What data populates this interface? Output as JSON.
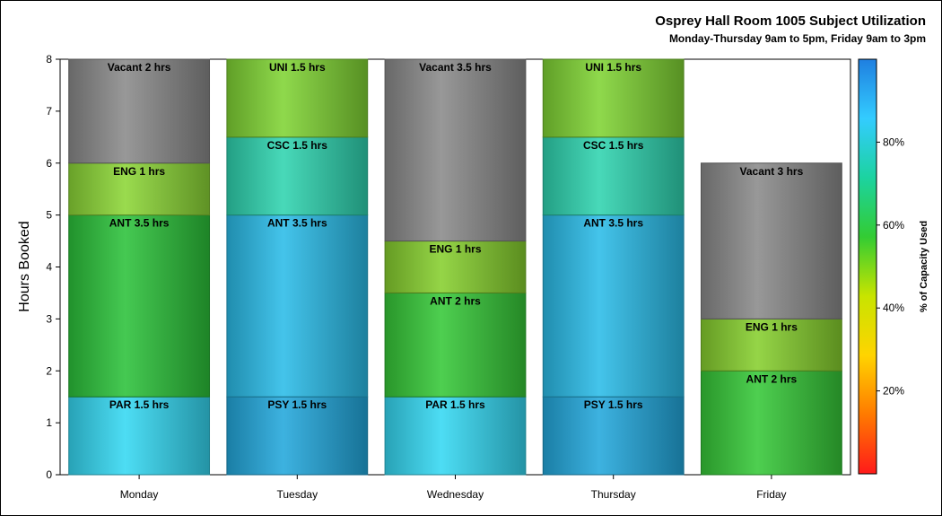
{
  "chart_data": {
    "type": "bar",
    "stacked": true,
    "title": "Osprey Hall Room 1005 Subject Utilization",
    "subtitle": "Monday-Thursday 9am to 5pm, Friday 9am to 3pm",
    "ylabel": "Hours Booked",
    "xlabel": "",
    "ylim": [
      0,
      8
    ],
    "yticks": [
      "0",
      "1",
      "2",
      "3",
      "4",
      "5",
      "6",
      "7",
      "8"
    ],
    "grid": false,
    "categories": [
      "Monday",
      "Tuesday",
      "Wednesday",
      "Thursday",
      "Friday"
    ],
    "bars": [
      {
        "day": "Monday",
        "segments": [
          {
            "label": "PAR 1.5 hrs",
            "hours": 1.5,
            "color": "#35d8f2"
          },
          {
            "label": "ANT 3.5 hrs",
            "hours": 3.5,
            "color": "#2cc23a"
          },
          {
            "label": "ENG 1 hrs",
            "hours": 1,
            "color": "#8cd636"
          },
          {
            "label": "Vacant 2 hrs",
            "hours": 2,
            "color": "#8a8a8a"
          }
        ]
      },
      {
        "day": "Tuesday",
        "segments": [
          {
            "label": "PSY 1.5 hrs",
            "hours": 1.5,
            "color": "#22a8dc"
          },
          {
            "label": "ANT 3.5 hrs",
            "hours": 3.5,
            "color": "#2bbce8"
          },
          {
            "label": "CSC 1.5 hrs",
            "hours": 1.5,
            "color": "#2fd4b0"
          },
          {
            "label": "UNI 1.5 hrs",
            "hours": 1.5,
            "color": "#80d434"
          }
        ]
      },
      {
        "day": "Wednesday",
        "segments": [
          {
            "label": "PAR 1.5 hrs",
            "hours": 1.5,
            "color": "#35d8f2"
          },
          {
            "label": "ANT 2 hrs",
            "hours": 2,
            "color": "#36c838"
          },
          {
            "label": "ENG 1 hrs",
            "hours": 1,
            "color": "#86cf2e"
          },
          {
            "label": "Vacant 3.5 hrs",
            "hours": 3.5,
            "color": "#8a8a8a"
          }
        ]
      },
      {
        "day": "Thursday",
        "segments": [
          {
            "label": "PSY 1.5 hrs",
            "hours": 1.5,
            "color": "#22a8dc"
          },
          {
            "label": "ANT 3.5 hrs",
            "hours": 3.5,
            "color": "#2bbce8"
          },
          {
            "label": "CSC 1.5 hrs",
            "hours": 1.5,
            "color": "#2fd4b0"
          },
          {
            "label": "UNI 1.5 hrs",
            "hours": 1.5,
            "color": "#80d434"
          }
        ]
      },
      {
        "day": "Friday",
        "segments": [
          {
            "label": "ANT 2 hrs",
            "hours": 2,
            "color": "#36c838"
          },
          {
            "label": "ENG 1 hrs",
            "hours": 1,
            "color": "#86cf2e"
          },
          {
            "label": "Vacant 3 hrs",
            "hours": 3,
            "color": "#8a8a8a"
          }
        ]
      }
    ],
    "colorbar": {
      "label": "% of Capacity Used",
      "range": [
        0,
        100
      ],
      "ticks": [
        "20%",
        "40%",
        "60%",
        "80%"
      ],
      "tick_values": [
        20,
        40,
        60,
        80
      ],
      "colors": [
        "#ff1a1a",
        "#ff7a00",
        "#ffd400",
        "#c8e400",
        "#33cc33",
        "#1cd3a0",
        "#33ccff",
        "#1f7fe0"
      ]
    }
  }
}
